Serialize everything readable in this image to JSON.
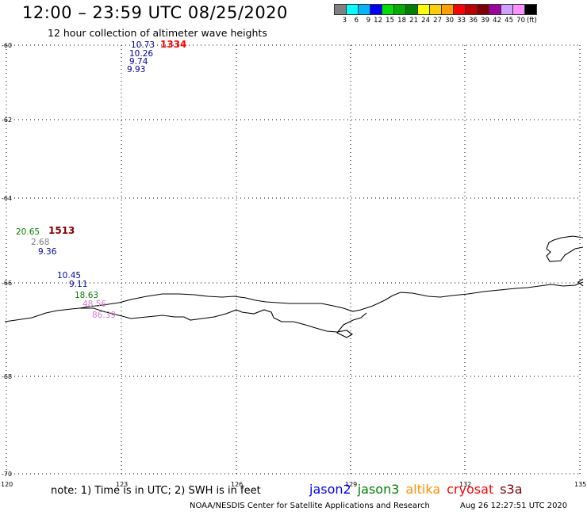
{
  "title": "12:00 – 23:59 UTC 08/25/2020",
  "subtitle": "12 hour collection of altimeter wave heights",
  "legend": {
    "colors": [
      "#808080",
      "#00ffff",
      "#00b4ff",
      "#0000ff",
      "#00e000",
      "#00b000",
      "#008000",
      "#ffff00",
      "#ffd000",
      "#ffa000",
      "#ff0000",
      "#c00000",
      "#800000",
      "#a000a0",
      "#d0a0ff",
      "#ff90ff",
      "#000000"
    ],
    "ticks": [
      "3",
      "6",
      "9",
      "12",
      "15",
      "18",
      "21",
      "24",
      "27",
      "30",
      "33",
      "36",
      "39",
      "42",
      "45",
      "70"
    ],
    "unit": "(ft)"
  },
  "axes": {
    "lat_labels": [
      "-60",
      "-62",
      "-64",
      "-66",
      "-68",
      "-70"
    ],
    "lon_labels": [
      "120",
      "123",
      "126",
      "129",
      "132",
      "135"
    ]
  },
  "observations": [
    {
      "text": "10.73",
      "color": "#0000a0"
    },
    {
      "text": "10.26",
      "color": "#0000a0"
    },
    {
      "text": "9.74",
      "color": "#0000a0"
    },
    {
      "text": "9.93",
      "color": "#0000a0"
    },
    {
      "text": "20.65",
      "color": "#008000"
    },
    {
      "text": "2.68",
      "color": "#808080"
    },
    {
      "text": "9.36",
      "color": "#0000a0"
    },
    {
      "text": "10.45",
      "color": "#0000c0"
    },
    {
      "text": "9.11",
      "color": "#0000c0"
    },
    {
      "text": "18.63",
      "color": "#008000"
    },
    {
      "text": "48.56",
      "color": "#d080d0"
    },
    {
      "text": "86.39",
      "color": "#d080d0"
    }
  ],
  "pass_times": [
    {
      "text": "1334",
      "color": "#ff0000"
    },
    {
      "text": "1513",
      "color": "#800000"
    }
  ],
  "footer": {
    "note": "note: 1) Time is in UTC; 2) SWH is in feet",
    "satellites": [
      {
        "name": "jason2",
        "color": "#0000ff"
      },
      {
        "name": "jason3",
        "color": "#008000"
      },
      {
        "name": "altika",
        "color": "#ff9000"
      },
      {
        "name": "cryosat",
        "color": "#ff0000"
      },
      {
        "name": "s3a",
        "color": "#800000"
      }
    ],
    "credit": "NOAA/NESDIS Center for Satellite Applications and Research",
    "timestamp": "Aug 26 12:27:51 UTC 2020"
  }
}
